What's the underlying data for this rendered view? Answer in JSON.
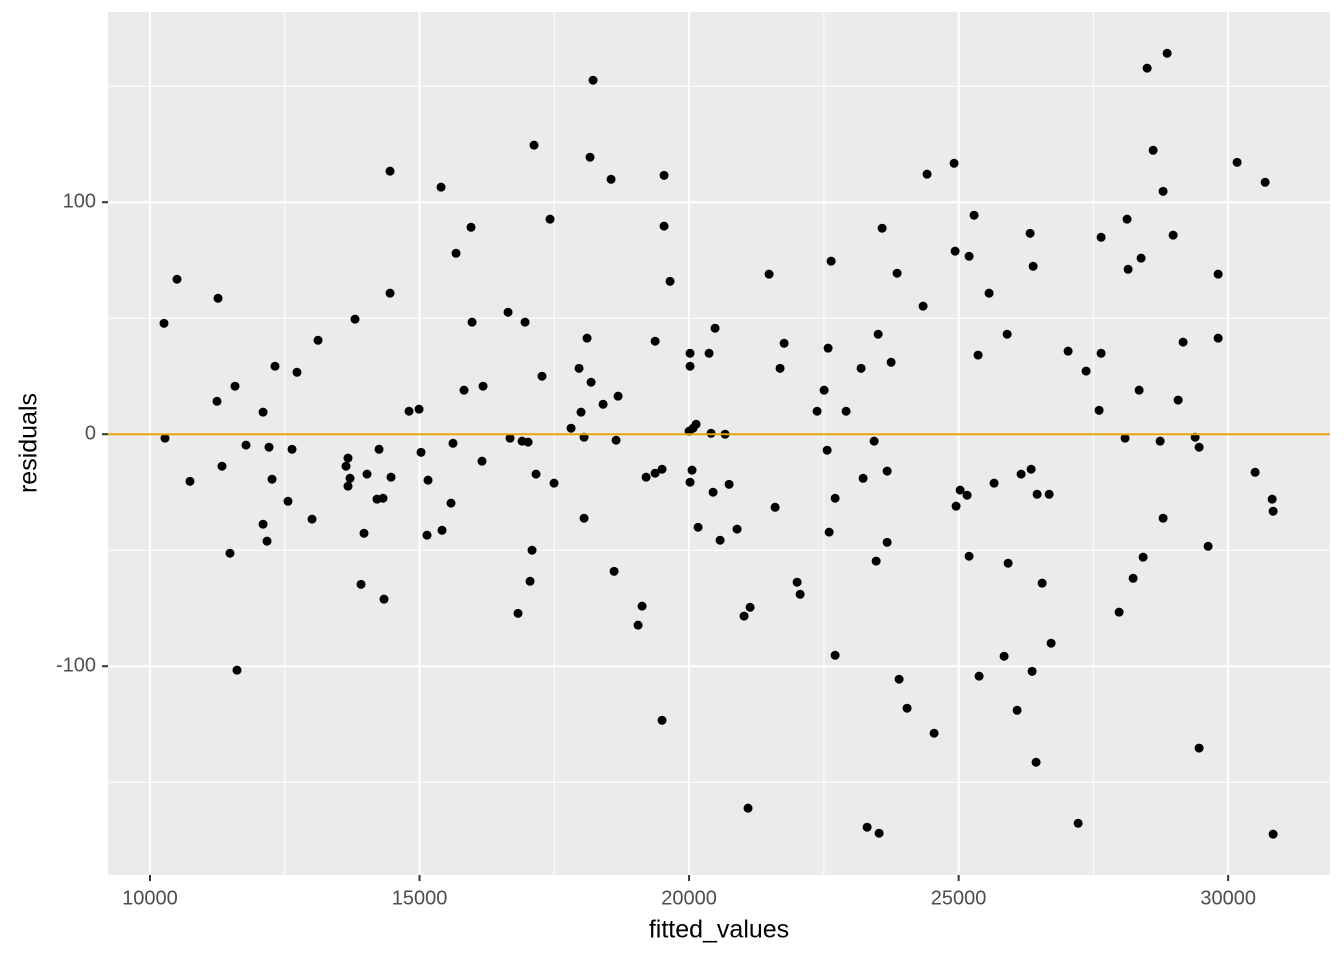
{
  "chart_data": {
    "type": "scatter",
    "x_label": "fitted_values",
    "y_label": "residuals",
    "xlim": [
      9221,
      31889
    ],
    "ylim": [
      -190,
      182
    ],
    "xticks": [
      10000,
      15000,
      20000,
      25000,
      30000
    ],
    "yticks": [
      -100,
      0,
      100
    ],
    "grid": true,
    "minor_grid": true,
    "hline": {
      "y": 0,
      "color": "#e5a50a"
    },
    "series": [
      {
        "color": "#000000",
        "x": [
          10260,
          10278,
          10501,
          10742,
          11262,
          11243,
          11336,
          11484,
          11577,
          11614,
          11781,
          12097,
          12097,
          12171,
          12208,
          12264,
          12319,
          12560,
          12635,
          12727,
          13006,
          13117,
          13636,
          13673,
          13673,
          13711,
          13803,
          13915,
          13970,
          14026,
          14211,
          14249,
          14323,
          14341,
          14453,
          14453,
          14471,
          14805,
          14991,
          15028,
          15139,
          15158,
          15399,
          15417,
          15584,
          15621,
          15677,
          15825,
          15955,
          15974,
          16159,
          16178,
          16642,
          16679,
          16827,
          16902,
          16957,
          17013,
          17050,
          17087,
          17124,
          17161,
          17272,
          17421,
          17495,
          17811,
          17959,
          17996,
          18052,
          18052,
          18108,
          18163,
          18182,
          18219,
          18405,
          18553,
          18609,
          18646,
          18683,
          19054,
          19128,
          19203,
          19370,
          19370,
          19499,
          19499,
          19536,
          19536,
          19647,
          20000,
          20018,
          20018,
          20018,
          20055,
          20074,
          20130,
          20167,
          20371,
          20408,
          20445,
          20482,
          20575,
          20668,
          20742,
          20890,
          21020,
          21132,
          21094,
          21484,
          21596,
          21688,
          21763,
          22004,
          22060,
          22375,
          22505,
          22561,
          22579,
          22598,
          22635,
          22709,
          22709,
          22913,
          23191,
          23228,
          23303,
          23433,
          23470,
          23507,
          23525,
          23581,
          23674,
          23674,
          23748,
          23859,
          23896,
          24044,
          24341,
          24415,
          24545,
          24916,
          24935,
          24953,
          25028,
          25157,
          25194,
          25194,
          25287,
          25361,
          25380,
          25565,
          25658,
          25844,
          25900,
          25918,
          26085,
          26159,
          26326,
          26345,
          26363,
          26382,
          26437,
          26456,
          26549,
          26679,
          26716,
          27031,
          27217,
          27365,
          27606,
          27643,
          27643,
          27977,
          28088,
          28125,
          28144,
          28237,
          28348,
          28385,
          28422,
          28497,
          28608,
          28738,
          28793,
          28793,
          28868,
          28979,
          29072,
          29164,
          29387,
          29461,
          29461,
          29628,
          29814,
          29814,
          30166,
          30500,
          30686,
          30816,
          30834,
          30834
        ],
        "values": [
          47.8,
          -1.7,
          66.8,
          -20.3,
          58.6,
          14.2,
          -13.8,
          -51.3,
          20.7,
          -101.7,
          -4.7,
          9.5,
          -38.8,
          -46.1,
          -5.6,
          -19.4,
          29.3,
          -28.9,
          -6.5,
          26.7,
          -36.6,
          40.5,
          -13.8,
          -10.3,
          -22.4,
          -19.0,
          49.6,
          -64.7,
          -42.7,
          -17.2,
          -28.0,
          -6.5,
          -27.6,
          -71.1,
          113.4,
          60.8,
          -18.5,
          9.9,
          10.8,
          -7.8,
          -43.5,
          -19.8,
          106.5,
          -41.4,
          -29.7,
          -3.9,
          78.0,
          19.0,
          89.2,
          48.3,
          -11.6,
          20.7,
          52.6,
          -1.7,
          -77.2,
          -3.0,
          48.3,
          -3.4,
          -63.4,
          -50.0,
          124.6,
          -17.2,
          25.0,
          92.7,
          -21.1,
          2.6,
          28.4,
          9.5,
          -36.2,
          -1.3,
          41.4,
          119.4,
          22.4,
          152.6,
          12.9,
          109.9,
          -59.1,
          -2.6,
          16.4,
          -82.3,
          -74.1,
          -18.5,
          40.1,
          -16.8,
          -15.1,
          -123.3,
          111.6,
          89.7,
          65.9,
          1.3,
          34.9,
          29.3,
          -20.7,
          -15.5,
          2.6,
          4.3,
          -40.1,
          34.9,
          0.4,
          -25.0,
          45.7,
          -45.7,
          0,
          -21.6,
          -40.9,
          -78.4,
          -74.6,
          -161.2,
          69.0,
          -31.5,
          28.4,
          39.2,
          -63.8,
          -69.0,
          9.9,
          19.0,
          -6.9,
          37.1,
          -42.2,
          74.6,
          -27.6,
          -95.3,
          9.9,
          28.4,
          -19.0,
          -169.4,
          -3.0,
          -54.7,
          43.1,
          -172.0,
          88.8,
          -15.9,
          -46.6,
          31.0,
          69.4,
          -105.6,
          -118.1,
          55.2,
          112.1,
          -128.9,
          116.8,
          78.9,
          -31.0,
          -24.1,
          -26.3,
          -52.6,
          76.7,
          94.4,
          34.1,
          -104.3,
          60.8,
          -21.1,
          -95.7,
          43.1,
          -55.6,
          -119.0,
          -17.2,
          86.6,
          -15.1,
          -102.2,
          72.4,
          -141.4,
          -25.9,
          -64.2,
          -25.9,
          -90.1,
          35.8,
          -167.7,
          27.2,
          10.3,
          34.9,
          84.9,
          -76.7,
          -1.7,
          92.7,
          71.1,
          -62.1,
          19.0,
          75.9,
          -53.0,
          157.8,
          122.4,
          -3.0,
          -36.2,
          104.7,
          164.2,
          85.8,
          14.7,
          39.7,
          -1.3,
          -5.6,
          -135.3,
          -48.3,
          69.0,
          41.4,
          117.2,
          -16.4,
          108.6,
          -28.0,
          -33.2,
          -172.4
        ]
      }
    ]
  }
}
